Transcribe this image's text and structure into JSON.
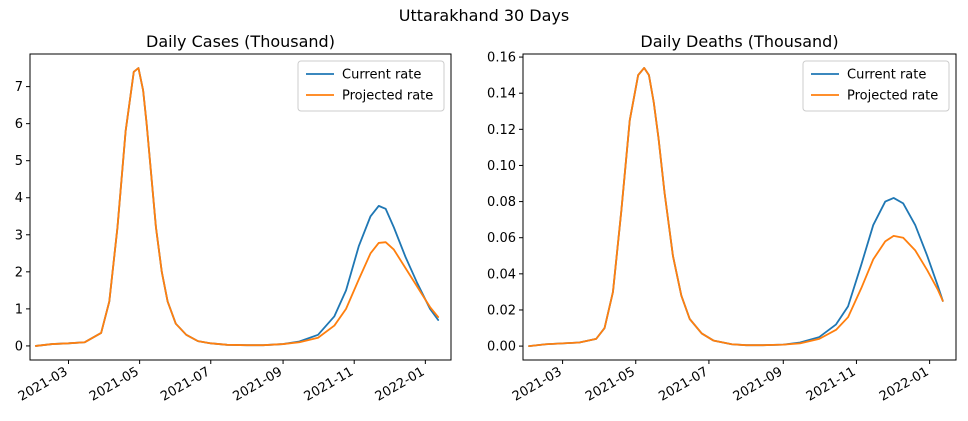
{
  "figure": {
    "suptitle": "Uttarakhand 30 Days"
  },
  "chart_data": [
    {
      "type": "line",
      "title": "Daily Cases (Thousand)",
      "xlabel": "",
      "ylabel": "",
      "x_ticks": [
        "2021-03",
        "2021-05",
        "2021-07",
        "2021-09",
        "2021-11",
        "2022-01"
      ],
      "y_ticks": [
        "0",
        "1",
        "2",
        "3",
        "4",
        "5",
        "6",
        "7"
      ],
      "xlim": [
        "2021-01-27",
        "2022-01-23"
      ],
      "ylim": [
        -0.38,
        7.88
      ],
      "grid": false,
      "legend": "top-right",
      "x": [
        "2021-02-01",
        "2021-02-15",
        "2021-03-01",
        "2021-03-15",
        "2021-03-29",
        "2021-04-05",
        "2021-04-12",
        "2021-04-19",
        "2021-04-26",
        "2021-04-30",
        "2021-05-04",
        "2021-05-07",
        "2021-05-11",
        "2021-05-15",
        "2021-05-20",
        "2021-05-25",
        "2021-06-01",
        "2021-06-10",
        "2021-06-20",
        "2021-07-01",
        "2021-07-15",
        "2021-08-01",
        "2021-08-15",
        "2021-09-01",
        "2021-09-15",
        "2021-10-01",
        "2021-10-15",
        "2021-10-25",
        "2021-11-05",
        "2021-11-15",
        "2021-11-22",
        "2021-11-28",
        "2021-12-05",
        "2021-12-15",
        "2021-12-25",
        "2022-01-05",
        "2022-01-12"
      ],
      "series": [
        {
          "name": "Current rate",
          "color": "#1f77b4",
          "values": [
            0.0,
            0.05,
            0.07,
            0.1,
            0.35,
            1.2,
            3.2,
            5.8,
            7.4,
            7.5,
            6.9,
            6.0,
            4.6,
            3.2,
            2.0,
            1.2,
            0.6,
            0.3,
            0.13,
            0.07,
            0.03,
            0.02,
            0.02,
            0.05,
            0.12,
            0.3,
            0.8,
            1.5,
            2.7,
            3.5,
            3.78,
            3.7,
            3.2,
            2.4,
            1.7,
            1.0,
            0.7
          ]
        },
        {
          "name": "Projected rate",
          "color": "#ff7f0e",
          "values": [
            0.0,
            0.05,
            0.07,
            0.1,
            0.35,
            1.2,
            3.2,
            5.8,
            7.4,
            7.5,
            6.9,
            6.0,
            4.6,
            3.2,
            2.0,
            1.2,
            0.6,
            0.3,
            0.13,
            0.07,
            0.03,
            0.02,
            0.02,
            0.05,
            0.1,
            0.22,
            0.55,
            1.0,
            1.8,
            2.5,
            2.78,
            2.8,
            2.6,
            2.1,
            1.6,
            1.05,
            0.78
          ]
        }
      ]
    },
    {
      "type": "line",
      "title": "Daily Deaths (Thousand)",
      "xlabel": "",
      "ylabel": "",
      "x_ticks": [
        "2021-03",
        "2021-05",
        "2021-07",
        "2021-09",
        "2021-11",
        "2022-01"
      ],
      "y_ticks": [
        "0.00",
        "0.02",
        "0.04",
        "0.06",
        "0.08",
        "0.10",
        "0.12",
        "0.14",
        "0.16"
      ],
      "xlim": [
        "2021-01-27",
        "2022-01-23"
      ],
      "ylim": [
        -0.0077,
        0.1617
      ],
      "grid": false,
      "legend": "top-right",
      "x": [
        "2021-02-01",
        "2021-02-15",
        "2021-03-01",
        "2021-03-15",
        "2021-03-29",
        "2021-04-05",
        "2021-04-12",
        "2021-04-19",
        "2021-04-26",
        "2021-05-03",
        "2021-05-08",
        "2021-05-12",
        "2021-05-16",
        "2021-05-20",
        "2021-05-25",
        "2021-06-01",
        "2021-06-08",
        "2021-06-15",
        "2021-06-25",
        "2021-07-05",
        "2021-07-20",
        "2021-08-01",
        "2021-08-15",
        "2021-09-01",
        "2021-09-15",
        "2021-10-01",
        "2021-10-15",
        "2021-10-25",
        "2021-11-05",
        "2021-11-15",
        "2021-11-25",
        "2021-12-02",
        "2021-12-10",
        "2021-12-20",
        "2021-12-30",
        "2022-01-08",
        "2022-01-12"
      ],
      "series": [
        {
          "name": "Current rate",
          "color": "#1f77b4",
          "values": [
            0.0,
            0.001,
            0.0015,
            0.002,
            0.004,
            0.01,
            0.03,
            0.075,
            0.125,
            0.15,
            0.154,
            0.15,
            0.135,
            0.115,
            0.085,
            0.05,
            0.028,
            0.015,
            0.007,
            0.003,
            0.001,
            0.0005,
            0.0005,
            0.0008,
            0.002,
            0.005,
            0.012,
            0.022,
            0.045,
            0.067,
            0.08,
            0.082,
            0.079,
            0.067,
            0.05,
            0.033,
            0.025
          ]
        },
        {
          "name": "Projected rate",
          "color": "#ff7f0e",
          "values": [
            0.0,
            0.001,
            0.0015,
            0.002,
            0.004,
            0.01,
            0.03,
            0.075,
            0.125,
            0.15,
            0.154,
            0.15,
            0.135,
            0.115,
            0.085,
            0.05,
            0.028,
            0.015,
            0.007,
            0.003,
            0.001,
            0.0005,
            0.0005,
            0.0008,
            0.0015,
            0.004,
            0.009,
            0.016,
            0.032,
            0.048,
            0.058,
            0.061,
            0.06,
            0.053,
            0.042,
            0.031,
            0.025
          ]
        }
      ]
    }
  ]
}
